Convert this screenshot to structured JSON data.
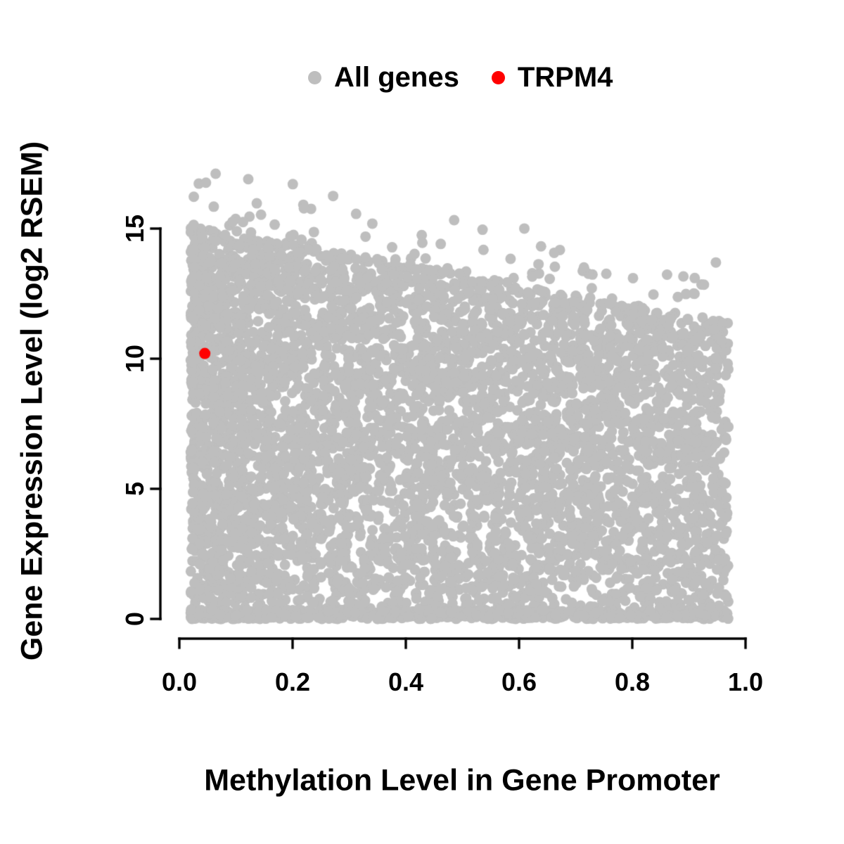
{
  "page": {
    "background": "#FFFFFF"
  },
  "legend": {
    "items": [
      {
        "label": "All genes",
        "color": "#BEBEBE"
      },
      {
        "label": "TRPM4",
        "color": "#FF0000"
      }
    ]
  },
  "axes": {
    "x": {
      "label": "Methylation Level in Gene Promoter",
      "tick_labels": [
        "0.0",
        "0.2",
        "0.4",
        "0.6",
        "0.8",
        "1.0"
      ]
    },
    "y": {
      "label": "Gene Expression Level (log2 RSEM)",
      "tick_labels": [
        "0",
        "5",
        "10",
        "15"
      ]
    }
  },
  "chart_data": {
    "type": "scatter",
    "title": "",
    "xlabel": "Methylation Level in Gene Promoter",
    "ylabel": "Gene Expression Level (log2 RSEM)",
    "xlim": [
      0.0,
      1.0
    ],
    "ylim": [
      0,
      17.5
    ],
    "x_ticks": [
      0.0,
      0.2,
      0.4,
      0.6,
      0.8,
      1.0
    ],
    "y_ticks": [
      0,
      5,
      10,
      15
    ],
    "grid": false,
    "legend_position": "top-center",
    "series": [
      {
        "name": "All genes",
        "color": "#BEBEBE",
        "marker": "filled-circle",
        "marker_radius_px": 7.5,
        "synthetic_cloud": {
          "description": "Dense triangular cloud: expression spans 0 to ~15 at low methylation; upper envelope declines to ~11.5 near methylation 0.95; heavy band of points at expression ~0; sparse outliers above envelope up to ~17.2 at methylation ~0.03",
          "point_count": 6000,
          "seed": 20240613,
          "x_min": 0.02,
          "x_max": 0.97,
          "x_skew_exponent": 1.25,
          "upper_envelope_y_at_x0": 15.2,
          "upper_envelope_slope": -3.9,
          "vertical_exponent": 0.9,
          "bottom_band_fraction": 0.12,
          "bottom_band_max_y": 0.35,
          "outlier_fraction": 0.012,
          "outlier_spread": 2.3,
          "max_y": 17.2
        }
      },
      {
        "name": "TRPM4",
        "color": "#FF0000",
        "marker": "filled-circle",
        "marker_radius_px": 8,
        "points": [
          [
            0.045,
            10.2
          ]
        ]
      }
    ]
  }
}
